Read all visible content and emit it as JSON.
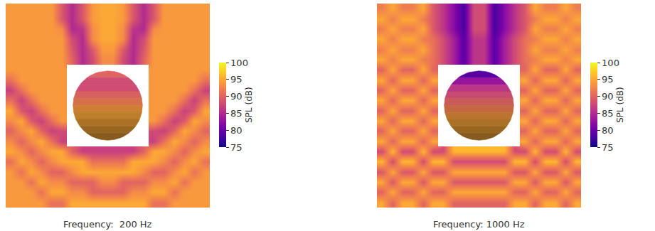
{
  "chart_data": [
    {
      "type": "heatmap",
      "title": "Frequency:  200 Hz",
      "colorbar_title": "SPL (dB)",
      "color_range": [
        75,
        100
      ],
      "color_ticks": [
        75,
        80,
        85,
        90,
        95,
        100
      ],
      "tick_labels": false,
      "cells": [
        [
          94,
          94,
          94,
          94,
          94,
          89,
          85,
          89,
          94,
          95,
          95,
          94,
          89,
          85,
          89,
          94,
          94,
          94,
          94,
          94
        ],
        [
          94,
          94,
          94,
          94,
          94,
          89,
          85,
          89,
          94,
          95,
          95,
          94,
          89,
          85,
          89,
          94,
          94,
          94,
          94,
          94
        ],
        [
          94,
          94,
          94,
          94,
          94,
          93,
          85,
          86,
          93,
          95,
          95,
          93,
          86,
          85,
          93,
          94,
          94,
          94,
          94,
          94
        ],
        [
          94,
          94,
          94,
          94,
          94,
          94,
          88,
          85,
          93,
          95,
          95,
          93,
          85,
          88,
          94,
          94,
          94,
          94,
          94,
          94
        ],
        [
          94,
          94,
          94,
          94,
          94,
          94,
          89,
          85,
          89,
          94,
          94,
          89,
          85,
          89,
          94,
          94,
          94,
          94,
          94,
          94
        ],
        [
          94,
          94,
          94,
          94,
          94,
          94,
          90,
          85,
          88,
          93,
          93,
          88,
          85,
          90,
          94,
          94,
          94,
          94,
          94,
          94
        ],
        [
          94,
          94,
          94,
          94,
          94,
          94,
          null,
          null,
          null,
          null,
          null,
          null,
          null,
          null,
          94,
          94,
          94,
          94,
          94,
          94
        ],
        [
          91,
          94,
          94,
          94,
          94,
          94,
          null,
          null,
          null,
          null,
          null,
          null,
          null,
          null,
          94,
          94,
          94,
          94,
          94,
          91
        ],
        [
          87,
          91,
          94,
          94,
          94,
          94,
          null,
          null,
          null,
          null,
          null,
          null,
          null,
          null,
          94,
          94,
          94,
          94,
          91,
          87
        ],
        [
          91,
          87,
          91,
          94,
          94,
          94,
          null,
          null,
          null,
          null,
          null,
          null,
          null,
          null,
          94,
          94,
          94,
          91,
          87,
          91
        ],
        [
          95,
          89,
          87,
          91,
          94,
          94,
          null,
          null,
          null,
          null,
          null,
          null,
          null,
          null,
          94,
          94,
          91,
          87,
          89,
          95
        ],
        [
          93,
          95,
          89,
          87,
          91,
          94,
          null,
          null,
          null,
          null,
          null,
          null,
          null,
          null,
          94,
          91,
          87,
          89,
          95,
          93
        ],
        [
          90,
          93,
          95,
          90,
          87,
          88,
          null,
          null,
          null,
          null,
          null,
          null,
          null,
          null,
          88,
          87,
          90,
          95,
          93,
          90
        ],
        [
          93,
          90,
          93,
          95,
          91,
          87,
          null,
          null,
          null,
          null,
          null,
          null,
          null,
          null,
          87,
          91,
          95,
          93,
          90,
          93
        ],
        [
          95,
          93,
          90,
          93,
          95,
          95,
          90,
          87,
          87,
          87,
          87,
          87,
          87,
          90,
          95,
          95,
          93,
          90,
          93,
          95
        ],
        [
          91,
          95,
          93,
          90,
          93,
          95,
          95,
          95,
          91,
          91,
          91,
          91,
          95,
          95,
          95,
          93,
          90,
          93,
          95,
          91
        ],
        [
          94,
          91,
          95,
          93,
          90,
          90,
          93,
          95,
          95,
          95,
          95,
          95,
          95,
          93,
          90,
          90,
          93,
          95,
          91,
          94
        ],
        [
          94,
          94,
          91,
          95,
          93,
          93,
          90,
          90,
          90,
          93,
          93,
          90,
          90,
          90,
          93,
          93,
          95,
          91,
          94,
          94
        ],
        [
          94,
          94,
          94,
          91,
          95,
          95,
          93,
          93,
          90,
          90,
          90,
          90,
          93,
          93,
          95,
          95,
          91,
          94,
          94,
          94
        ],
        [
          94,
          94,
          94,
          94,
          91,
          91,
          95,
          95,
          95,
          95,
          95,
          95,
          95,
          95,
          91,
          91,
          94,
          94,
          94,
          94
        ]
      ],
      "sphere_spl": [
        90,
        88,
        88,
        90,
        92,
        94,
        95,
        95,
        95,
        95
      ]
    },
    {
      "type": "heatmap",
      "title": "Frequency: 1000 Hz",
      "colorbar_title": "SPL (dB)",
      "color_range": [
        75,
        100
      ],
      "color_ticks": [
        75,
        80,
        85,
        90,
        95,
        100
      ],
      "tick_labels": false,
      "cells": [
        [
          92,
          95,
          92,
          92,
          95,
          89,
          86,
          82,
          78,
          88,
          88,
          78,
          82,
          86,
          89,
          95,
          92,
          92,
          95,
          92
        ],
        [
          95,
          92,
          95,
          95,
          92,
          89,
          86,
          82,
          78,
          88,
          88,
          78,
          82,
          86,
          89,
          92,
          95,
          95,
          92,
          95
        ],
        [
          92,
          95,
          92,
          92,
          95,
          89,
          86,
          82,
          78,
          88,
          88,
          78,
          82,
          86,
          89,
          95,
          92,
          92,
          95,
          92
        ],
        [
          95,
          92,
          95,
          95,
          92,
          91,
          88,
          84,
          79,
          86,
          86,
          79,
          84,
          88,
          91,
          92,
          95,
          95,
          92,
          95
        ],
        [
          92,
          95,
          92,
          92,
          95,
          91,
          88,
          84,
          79,
          86,
          86,
          79,
          84,
          88,
          91,
          95,
          92,
          92,
          95,
          92
        ],
        [
          95,
          92,
          95,
          95,
          92,
          91,
          88,
          84,
          79,
          86,
          86,
          79,
          84,
          88,
          91,
          92,
          95,
          95,
          92,
          95
        ],
        [
          90,
          95,
          90,
          90,
          95,
          90,
          null,
          null,
          null,
          null,
          null,
          null,
          null,
          null,
          90,
          95,
          90,
          90,
          95,
          90
        ],
        [
          95,
          90,
          95,
          95,
          90,
          95,
          null,
          null,
          null,
          null,
          null,
          null,
          null,
          null,
          95,
          90,
          95,
          95,
          90,
          95
        ],
        [
          90,
          95,
          90,
          90,
          95,
          90,
          null,
          null,
          null,
          null,
          null,
          null,
          null,
          null,
          90,
          95,
          90,
          90,
          95,
          90
        ],
        [
          95,
          90,
          95,
          95,
          90,
          95,
          null,
          null,
          null,
          null,
          null,
          null,
          null,
          null,
          95,
          90,
          95,
          95,
          90,
          95
        ],
        [
          90,
          95,
          90,
          90,
          95,
          90,
          null,
          null,
          null,
          null,
          null,
          null,
          null,
          null,
          90,
          95,
          90,
          90,
          95,
          90
        ],
        [
          95,
          90,
          95,
          95,
          90,
          95,
          null,
          null,
          null,
          null,
          null,
          null,
          null,
          null,
          95,
          90,
          95,
          95,
          90,
          95
        ],
        [
          90,
          95,
          90,
          90,
          95,
          90,
          null,
          null,
          null,
          null,
          null,
          null,
          null,
          null,
          90,
          95,
          90,
          90,
          95,
          90
        ],
        [
          95,
          90,
          95,
          95,
          90,
          95,
          null,
          null,
          null,
          null,
          null,
          null,
          null,
          null,
          95,
          90,
          95,
          95,
          90,
          95
        ],
        [
          88,
          96,
          88,
          88,
          96,
          88,
          88,
          96,
          96,
          96,
          96,
          96,
          96,
          88,
          88,
          96,
          88,
          88,
          96,
          88
        ],
        [
          96,
          88,
          96,
          96,
          88,
          96,
          96,
          88,
          88,
          88,
          88,
          88,
          88,
          96,
          96,
          88,
          96,
          96,
          88,
          96
        ],
        [
          89,
          95,
          89,
          89,
          95,
          89,
          89,
          95,
          95,
          95,
          95,
          95,
          95,
          89,
          89,
          95,
          89,
          89,
          95,
          89
        ],
        [
          95,
          89,
          95,
          95,
          89,
          95,
          95,
          89,
          89,
          89,
          89,
          89,
          89,
          95,
          95,
          89,
          95,
          95,
          89,
          95
        ],
        [
          90,
          95,
          90,
          90,
          95,
          90,
          90,
          95,
          95,
          95,
          95,
          95,
          95,
          90,
          90,
          95,
          90,
          90,
          95,
          90
        ],
        [
          95,
          90,
          95,
          95,
          90,
          95,
          95,
          90,
          90,
          90,
          90,
          90,
          90,
          95,
          95,
          90,
          95,
          95,
          90,
          95
        ]
      ],
      "sphere_spl": [
        79,
        83,
        86,
        88,
        90,
        92,
        94,
        95,
        95,
        95
      ]
    }
  ]
}
